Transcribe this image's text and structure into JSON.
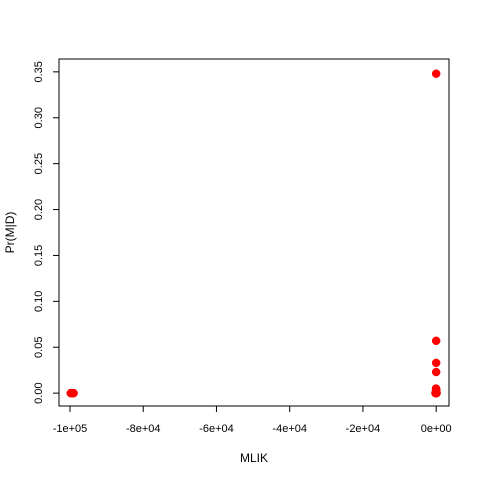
{
  "chart_data": {
    "type": "scatter",
    "title": "",
    "xlabel": "MLIK",
    "ylabel": "Pr(M|D)",
    "xlim": [
      -103000,
      3500
    ],
    "ylim": [
      -0.014,
      0.364
    ],
    "x_ticks": [
      -100000,
      -80000,
      -60000,
      -40000,
      -20000,
      0
    ],
    "x_tick_labels": [
      "-1e+05",
      "-8e+04",
      "-6e+04",
      "-4e+04",
      "-2e+04",
      "0e+00"
    ],
    "y_ticks": [
      0.0,
      0.05,
      0.1,
      0.15,
      0.2,
      0.25,
      0.3,
      0.35
    ],
    "y_tick_labels": [
      "0.00",
      "0.05",
      "0.10",
      "0.15",
      "0.20",
      "0.25",
      "0.30",
      "0.35"
    ],
    "grid": false,
    "legend": false,
    "point_color": "#ff0000",
    "points": [
      {
        "x": 0,
        "y": 0.348
      },
      {
        "x": 0,
        "y": 0.057
      },
      {
        "x": 0,
        "y": 0.033
      },
      {
        "x": 0,
        "y": 0.023
      },
      {
        "x": -50,
        "y": 0.005
      },
      {
        "x": 30,
        "y": 0.004
      },
      {
        "x": -80,
        "y": 0.002
      },
      {
        "x": 40,
        "y": 0.001
      },
      {
        "x": -120,
        "y": 0.0
      },
      {
        "x": 60,
        "y": 0.0
      },
      {
        "x": -200,
        "y": 0.0
      },
      {
        "x": 120,
        "y": 0.0
      },
      {
        "x": -99800,
        "y": 0.0
      },
      {
        "x": -99600,
        "y": 0.0
      },
      {
        "x": -99400,
        "y": 0.0
      },
      {
        "x": -99200,
        "y": 0.0
      },
      {
        "x": -99000,
        "y": 0.0
      }
    ]
  }
}
